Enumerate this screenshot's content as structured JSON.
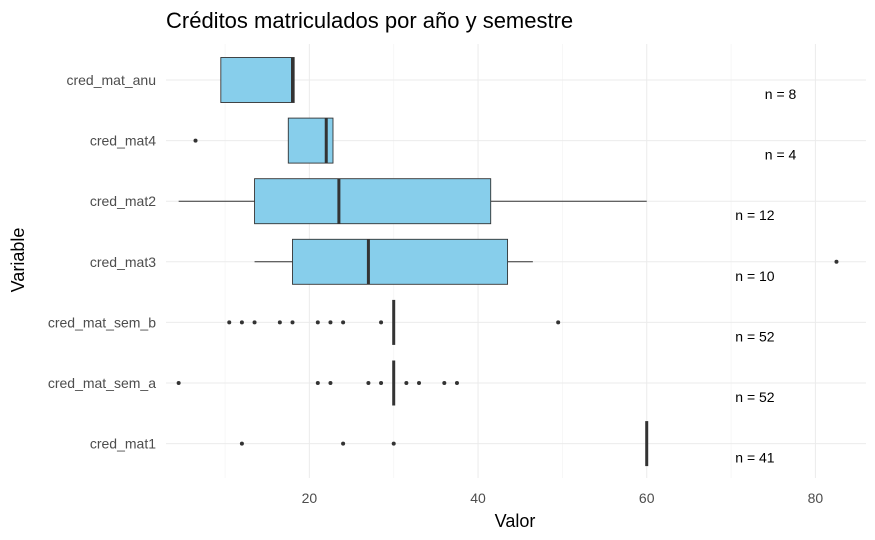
{
  "chart_data": {
    "type": "boxplot",
    "orientation": "horizontal",
    "title": "Créditos matriculados por año y semestre",
    "xlabel": "Valor",
    "ylabel": "Variable",
    "xlim": [
      3,
      86
    ],
    "x_ticks": [
      20,
      40,
      60,
      80
    ],
    "x_minor_ticks": [
      10,
      30,
      50,
      70
    ],
    "grid": true,
    "colors": {
      "box_fill": "#87ceeb",
      "line": "#333333",
      "outlier": "#333333"
    },
    "groups": [
      {
        "category": "cred_mat_anu",
        "n_label": "n = 8",
        "n": 8,
        "n_x": 74,
        "q1": 9.5,
        "median": 18,
        "q3": 18.2,
        "whisker_low": 9.5,
        "whisker_high": 18.2,
        "outliers": []
      },
      {
        "category": "cred_mat4",
        "n_label": "n = 4",
        "n": 4,
        "n_x": 74,
        "q1": 17.5,
        "median": 22,
        "q3": 22.8,
        "whisker_low": 17.5,
        "whisker_high": 22.8,
        "outliers": [
          6.5
        ]
      },
      {
        "category": "cred_mat2",
        "n_label": "n = 12",
        "n": 12,
        "n_x": 70.5,
        "q1": 13.5,
        "median": 23.5,
        "q3": 41.5,
        "whisker_low": 4.5,
        "whisker_high": 60,
        "outliers": []
      },
      {
        "category": "cred_mat3",
        "n_label": "n = 10",
        "n": 10,
        "n_x": 70.5,
        "q1": 18,
        "median": 27,
        "q3": 43.5,
        "whisker_low": 13.5,
        "whisker_high": 46.5,
        "outliers": [
          82.5
        ]
      },
      {
        "category": "cred_mat_sem_b",
        "n_label": "n = 52",
        "n": 52,
        "n_x": 70.5,
        "q1": 30,
        "median": 30,
        "q3": 30,
        "whisker_low": 30,
        "whisker_high": 30,
        "outliers": [
          10.5,
          12,
          13.5,
          16.5,
          18,
          21,
          22.5,
          24,
          28.5,
          49.5
        ]
      },
      {
        "category": "cred_mat_sem_a",
        "n_label": "n = 52",
        "n": 52,
        "n_x": 70.5,
        "q1": 30,
        "median": 30,
        "q3": 30,
        "whisker_low": 30,
        "whisker_high": 30,
        "outliers": [
          4.5,
          21,
          22.5,
          27,
          28.5,
          31.5,
          33,
          36,
          37.5
        ]
      },
      {
        "category": "cred_mat1",
        "n_label": "n = 41",
        "n": 41,
        "n_x": 70.5,
        "q1": 60,
        "median": 60,
        "q3": 60,
        "whisker_low": 60,
        "whisker_high": 60,
        "outliers": [
          12,
          24,
          30
        ]
      }
    ]
  }
}
